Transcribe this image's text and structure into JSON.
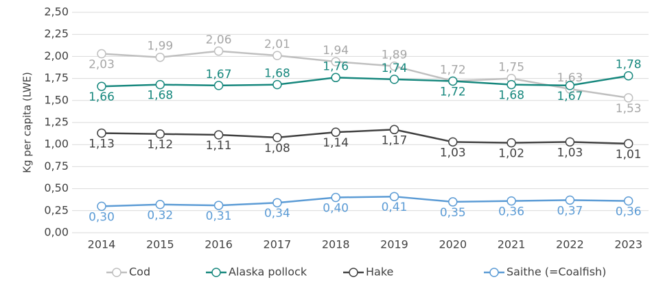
{
  "chart_data": {
    "type": "line",
    "y_label": "Kg per capita (LWE)",
    "categories": [
      "2014",
      "2015",
      "2016",
      "2017",
      "2018",
      "2019",
      "2020",
      "2021",
      "2022",
      "2023"
    ],
    "series": [
      {
        "name": "Cod",
        "color": "#bfbfbf",
        "values": [
          2.03,
          1.99,
          2.06,
          2.01,
          1.94,
          1.89,
          1.72,
          1.75,
          1.63,
          1.53
        ],
        "value_labels": [
          "2,03",
          "1,99",
          "2,06",
          "2,01",
          "1,94",
          "1,89",
          "1,72",
          "1,75",
          "1,63",
          "1,53"
        ]
      },
      {
        "name": "Alaska pollock",
        "color": "#16877d",
        "values": [
          1.66,
          1.68,
          1.67,
          1.68,
          1.76,
          1.74,
          1.72,
          1.68,
          1.67,
          1.78
        ],
        "value_labels": [
          "1,66",
          "1,68",
          "1,67",
          "1,68",
          "1,76",
          "1,74",
          "1,72",
          "1,68",
          "1,67",
          "1,78"
        ]
      },
      {
        "name": "Hake",
        "color": "#404040",
        "values": [
          1.13,
          1.12,
          1.11,
          1.08,
          1.14,
          1.17,
          1.03,
          1.02,
          1.03,
          1.01
        ],
        "value_labels": [
          "1,13",
          "1,12",
          "1,11",
          "1,08",
          "1,14",
          "1,17",
          "1,03",
          "1,02",
          "1,03",
          "1,01"
        ]
      },
      {
        "name": "Saithe (=Coalfish)",
        "color": "#5b9bd5",
        "values": [
          0.3,
          0.32,
          0.31,
          0.34,
          0.4,
          0.41,
          0.35,
          0.36,
          0.37,
          0.36
        ],
        "value_labels": [
          "0,30",
          "0,32",
          "0,31",
          "0,34",
          "0,40",
          "0,41",
          "0,35",
          "0,36",
          "0,37",
          "0,36"
        ]
      }
    ],
    "ylim": [
      0,
      2.5
    ],
    "yticks": [
      {
        "value": 0,
        "label": "0,00"
      },
      {
        "value": 0.25,
        "label": "0,25"
      },
      {
        "value": 0.5,
        "label": "0,50"
      },
      {
        "value": 0.75,
        "label": "0,75"
      },
      {
        "value": 1,
        "label": "1,00"
      },
      {
        "value": 1.25,
        "label": "1,25"
      },
      {
        "value": 1.5,
        "label": "1,50"
      },
      {
        "value": 1.75,
        "label": "1,75"
      },
      {
        "value": 2,
        "label": "2,00"
      },
      {
        "value": 2.25,
        "label": "2,25"
      },
      {
        "value": 2.5,
        "label": "2,50"
      }
    ],
    "grid": true,
    "legend": "bottom"
  }
}
